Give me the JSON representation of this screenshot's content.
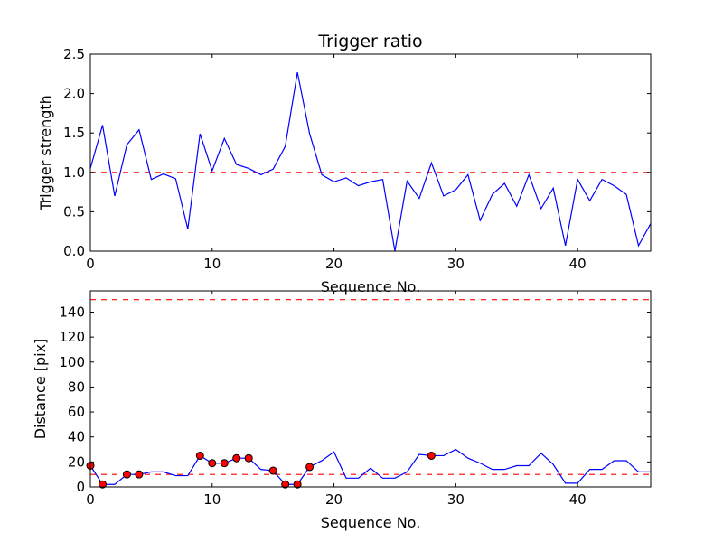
{
  "chart_data": [
    {
      "type": "line",
      "title": "Trigger ratio",
      "xlabel": "Sequence No.",
      "ylabel": "Trigger strength",
      "xlim": [
        0,
        46
      ],
      "ylim": [
        0,
        2.5
      ],
      "xticks": [
        0,
        10,
        20,
        30,
        40
      ],
      "xtick_labels": [
        "0",
        "10",
        "20",
        "30",
        "40"
      ],
      "yticks": [
        0,
        0.5,
        1.0,
        1.5,
        2.0,
        2.5
      ],
      "ytick_labels": [
        "0.0",
        "0.5",
        "1.0",
        "1.5",
        "2.0",
        "2.5"
      ],
      "series": [
        {
          "name": "trigger strength",
          "color": "#0000ff",
          "x": [
            0,
            1,
            2,
            3,
            4,
            5,
            6,
            7,
            8,
            9,
            10,
            11,
            12,
            13,
            14,
            15,
            16,
            17,
            18,
            19,
            20,
            21,
            22,
            23,
            24,
            25,
            26,
            27,
            28,
            29,
            30,
            31,
            32,
            33,
            34,
            35,
            36,
            37,
            38,
            39,
            40,
            41,
            42,
            43,
            44,
            45,
            46
          ],
          "values": [
            1.05,
            1.6,
            0.7,
            1.35,
            1.54,
            0.91,
            0.98,
            0.92,
            0.28,
            1.49,
            1.02,
            1.43,
            1.1,
            1.05,
            0.97,
            1.04,
            1.33,
            2.27,
            1.49,
            0.97,
            0.88,
            0.93,
            0.83,
            0.88,
            0.91,
            0.0,
            0.89,
            0.67,
            1.12,
            0.7,
            0.78,
            0.97,
            0.39,
            0.72,
            0.86,
            0.57,
            0.97,
            0.54,
            0.8,
            0.07,
            0.91,
            0.64,
            0.91,
            0.83,
            0.72,
            0.07,
            0.35
          ]
        }
      ],
      "reference_lines": [
        {
          "y": 1.0,
          "color": "#ff0000",
          "style": "dashed"
        }
      ]
    },
    {
      "type": "line",
      "title": "",
      "xlabel": "Sequence No.",
      "ylabel": "Distance [pix]",
      "xlim": [
        0,
        46
      ],
      "ylim": [
        0,
        157
      ],
      "xticks": [
        0,
        10,
        20,
        30,
        40
      ],
      "xtick_labels": [
        "0",
        "10",
        "20",
        "30",
        "40"
      ],
      "yticks": [
        0,
        20,
        40,
        60,
        80,
        100,
        120,
        140
      ],
      "ytick_labels": [
        "0",
        "20",
        "40",
        "60",
        "80",
        "100",
        "120",
        "140"
      ],
      "series": [
        {
          "name": "distance",
          "color": "#0000ff",
          "x": [
            0,
            1,
            2,
            3,
            4,
            5,
            6,
            7,
            8,
            9,
            10,
            11,
            12,
            13,
            14,
            15,
            16,
            17,
            18,
            19,
            20,
            21,
            22,
            23,
            24,
            25,
            26,
            27,
            28,
            29,
            30,
            31,
            32,
            33,
            34,
            35,
            36,
            37,
            38,
            39,
            40,
            41,
            42,
            43,
            44,
            45,
            46
          ],
          "values": [
            17,
            2,
            2,
            10,
            10,
            12,
            12,
            9,
            9,
            25,
            19,
            19,
            23,
            23,
            14,
            13,
            2,
            2,
            16,
            21,
            28,
            7,
            7,
            15,
            7,
            7,
            12,
            26,
            25,
            25,
            30,
            23,
            19,
            14,
            14,
            17,
            17,
            27,
            18,
            3,
            3,
            14,
            14,
            21,
            21,
            12,
            12
          ]
        }
      ],
      "markers": {
        "name": "highlighted points",
        "color": "#ff0000",
        "x": [
          0,
          1,
          3,
          4,
          9,
          10,
          11,
          12,
          13,
          15,
          16,
          17,
          18,
          28
        ],
        "values": [
          17,
          2,
          10,
          10,
          25,
          19,
          19,
          23,
          23,
          13,
          2,
          2,
          16,
          25
        ]
      },
      "reference_lines": [
        {
          "y": 150,
          "color": "#ff0000",
          "style": "dashed"
        },
        {
          "y": 10,
          "color": "#ff0000",
          "style": "dashed"
        }
      ]
    }
  ]
}
